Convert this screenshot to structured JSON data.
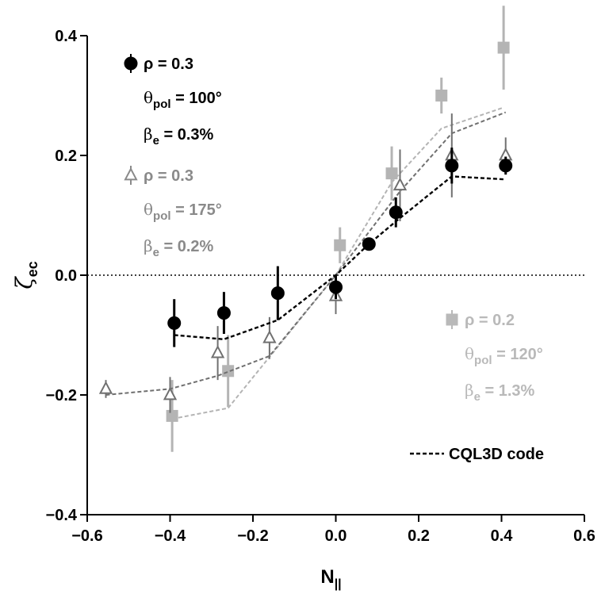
{
  "chart_data": {
    "type": "scatter",
    "xlabel": "N",
    "xlabel_sub": "||",
    "ylabel": "ζ",
    "ylabel_sub": "ec",
    "xlim": [
      -0.6,
      0.6
    ],
    "ylim": [
      -0.4,
      0.4
    ],
    "xticks": [
      "−0.6",
      "−0.4",
      "−0.2",
      "0.0",
      "0.2",
      "0.4",
      "0.6"
    ],
    "xtick_values": [
      -0.6,
      -0.4,
      -0.2,
      0.0,
      0.2,
      0.4,
      0.6
    ],
    "yticks": [
      "−0.4",
      "−0.2",
      "0.0",
      "0.2",
      "0.4"
    ],
    "ytick_values": [
      -0.4,
      -0.2,
      0.0,
      0.2,
      0.4
    ],
    "zero_line": true,
    "grid": false,
    "series": [
      {
        "marker": "circle",
        "color": "#000000",
        "points": [
          {
            "x": -0.39,
            "y": -0.08,
            "err": 0.04
          },
          {
            "x": -0.27,
            "y": -0.063,
            "err": 0.035
          },
          {
            "x": -0.14,
            "y": -0.03,
            "err": 0.045
          },
          {
            "x": 0.0,
            "y": -0.02,
            "err": 0.02
          },
          {
            "x": 0.08,
            "y": 0.052,
            "err": 0.008
          },
          {
            "x": 0.145,
            "y": 0.105,
            "err": 0.025
          },
          {
            "x": 0.28,
            "y": 0.183,
            "err": 0.03
          },
          {
            "x": 0.41,
            "y": 0.183,
            "err": 0.015
          }
        ],
        "fit": [
          [
            -0.39,
            -0.1
          ],
          [
            -0.27,
            -0.107
          ],
          [
            -0.14,
            -0.075
          ],
          [
            0.0,
            0.0
          ],
          [
            0.08,
            0.052
          ],
          [
            0.145,
            0.09
          ],
          [
            0.28,
            0.165
          ],
          [
            0.41,
            0.16
          ]
        ]
      },
      {
        "marker": "triangle-open",
        "color": "#707070",
        "points": [
          {
            "x": -0.555,
            "y": -0.19,
            "err": 0.015
          },
          {
            "x": -0.4,
            "y": -0.2,
            "err": 0.03
          },
          {
            "x": -0.285,
            "y": -0.13,
            "err": 0.045
          },
          {
            "x": -0.16,
            "y": -0.105,
            "err": 0.035
          },
          {
            "x": 0.0,
            "y": -0.035,
            "err": 0.03
          },
          {
            "x": 0.155,
            "y": 0.15,
            "err": 0.06
          },
          {
            "x": 0.28,
            "y": 0.2,
            "err": 0.07
          },
          {
            "x": 0.41,
            "y": 0.2,
            "err": 0.03
          }
        ],
        "fit": [
          [
            -0.555,
            -0.2
          ],
          [
            -0.4,
            -0.19
          ],
          [
            -0.285,
            -0.168
          ],
          [
            -0.16,
            -0.135
          ],
          [
            0.0,
            0.0
          ],
          [
            0.155,
            0.14
          ],
          [
            0.28,
            0.237
          ],
          [
            0.41,
            0.272
          ]
        ]
      },
      {
        "marker": "square",
        "color": "#b4b4b4",
        "points": [
          {
            "x": -0.395,
            "y": -0.235,
            "err": 0.06
          },
          {
            "x": -0.26,
            "y": -0.16,
            "err": 0.06
          },
          {
            "x": 0.01,
            "y": 0.05,
            "err": 0.03
          },
          {
            "x": 0.135,
            "y": 0.17,
            "err": 0.045
          },
          {
            "x": 0.255,
            "y": 0.3,
            "err": 0.03
          },
          {
            "x": 0.405,
            "y": 0.38,
            "err": 0.07
          }
        ],
        "fit": [
          [
            -0.395,
            -0.24
          ],
          [
            -0.26,
            -0.222
          ],
          [
            0.0,
            0.0
          ],
          [
            0.135,
            0.155
          ],
          [
            0.255,
            0.245
          ],
          [
            0.405,
            0.28
          ]
        ]
      }
    ],
    "legend": [
      {
        "marker": "circle",
        "color": "#000000",
        "rho": "ρ = 0.3",
        "theta_pre": "θ",
        "theta_sub": "pol",
        "theta_post": " = 100°",
        "beta_pre": "β",
        "beta_sub": "e",
        "beta_post": " = 0.3%"
      },
      {
        "marker": "triangle-open",
        "color": "#8a8a8a",
        "rho": "ρ = 0.3",
        "theta_pre": "θ",
        "theta_sub": "pol",
        "theta_post": " = 175°",
        "beta_pre": "β",
        "beta_sub": "e",
        "beta_post": " = 0.2%"
      },
      {
        "marker": "square",
        "color": "#b9b9b9",
        "rho": "ρ = 0.2",
        "theta_pre": "θ",
        "theta_sub": "pol",
        "theta_post": " = 120°",
        "beta_pre": "β",
        "beta_sub": "e",
        "beta_post": " = 1.3%"
      }
    ],
    "line_legend": {
      "label": "CQL3D code",
      "style": "dashed"
    }
  }
}
